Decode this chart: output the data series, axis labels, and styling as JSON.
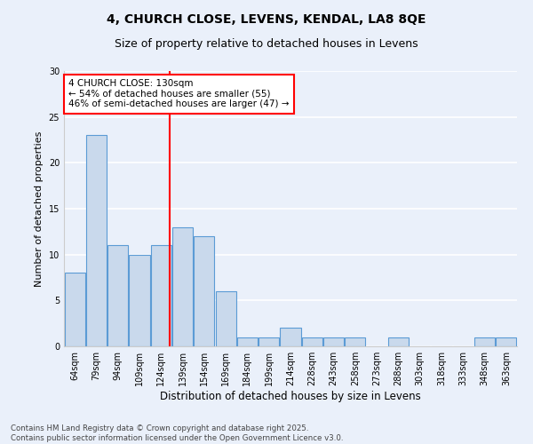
{
  "title1": "4, CHURCH CLOSE, LEVENS, KENDAL, LA8 8QE",
  "title2": "Size of property relative to detached houses in Levens",
  "xlabel": "Distribution of detached houses by size in Levens",
  "ylabel": "Number of detached properties",
  "categories": [
    "64sqm",
    "79sqm",
    "94sqm",
    "109sqm",
    "124sqm",
    "139sqm",
    "154sqm",
    "169sqm",
    "184sqm",
    "199sqm",
    "214sqm",
    "228sqm",
    "243sqm",
    "258sqm",
    "273sqm",
    "288sqm",
    "303sqm",
    "318sqm",
    "333sqm",
    "348sqm",
    "363sqm"
  ],
  "values": [
    8,
    23,
    11,
    10,
    11,
    13,
    12,
    6,
    1,
    1,
    2,
    1,
    1,
    1,
    0,
    1,
    0,
    0,
    0,
    1,
    1
  ],
  "bar_color": "#c9d9ec",
  "bar_edge_color": "#5b9bd5",
  "bar_linewidth": 0.8,
  "vline_x": 4.4,
  "annotation_text": "4 CHURCH CLOSE: 130sqm\n← 54% of detached houses are smaller (55)\n46% of semi-detached houses are larger (47) →",
  "annotation_box_color": "white",
  "annotation_box_edgecolor": "red",
  "vline_color": "red",
  "ylim": [
    0,
    30
  ],
  "yticks": [
    0,
    5,
    10,
    15,
    20,
    25,
    30
  ],
  "bg_color": "#eaf0fa",
  "grid_color": "white",
  "footer": "Contains HM Land Registry data © Crown copyright and database right 2025.\nContains public sector information licensed under the Open Government Licence v3.0.",
  "title1_fontsize": 10,
  "title2_fontsize": 9,
  "xlabel_fontsize": 8.5,
  "ylabel_fontsize": 8,
  "tick_fontsize": 7,
  "annotation_fontsize": 7.5
}
